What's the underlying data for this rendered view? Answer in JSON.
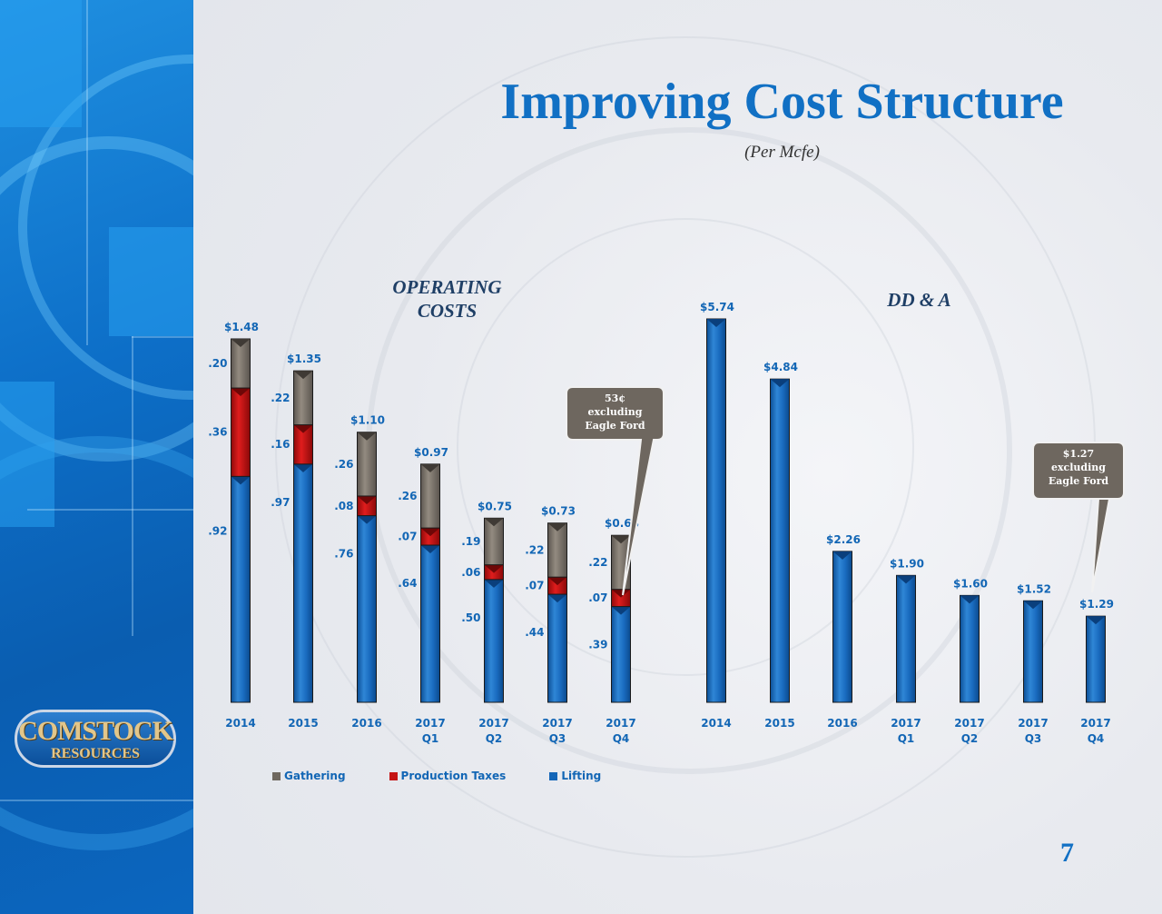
{
  "slide": {
    "title": "Improving Cost Structure",
    "subtitle": "(Per Mcfe)",
    "page_number": "7",
    "logo": {
      "line1": "COMSTOCK",
      "line2": "RESOURCES"
    }
  },
  "colors": {
    "gathering": "#7d766c",
    "production_taxes": "#c51414",
    "lifting": "#1466b8",
    "title": "#1170c4",
    "label": "#1266b5",
    "callout": "#6e675f"
  },
  "chart_data": [
    {
      "type": "bar",
      "title": "OPERATING COSTS",
      "stacked": true,
      "categories": [
        "2014",
        "2015",
        "2016",
        "2017 Q1",
        "2017 Q2",
        "2017 Q3",
        "2017 Q4"
      ],
      "category_lines": [
        [
          "2014",
          ""
        ],
        [
          "2015",
          ""
        ],
        [
          "2016",
          ""
        ],
        [
          "2017",
          "Q1"
        ],
        [
          "2017",
          "Q2"
        ],
        [
          "2017",
          "Q3"
        ],
        [
          "2017",
          "Q4"
        ]
      ],
      "series": [
        {
          "name": "Lifting",
          "values": [
            0.92,
            0.97,
            0.76,
            0.64,
            0.5,
            0.44,
            0.39
          ],
          "labels": [
            ".92",
            ".97",
            ".76",
            ".64",
            ".50",
            ".44",
            ".39"
          ]
        },
        {
          "name": "Production Taxes",
          "values": [
            0.36,
            0.16,
            0.08,
            0.07,
            0.06,
            0.07,
            0.07
          ],
          "labels": [
            ".36",
            ".16",
            ".08",
            ".07",
            ".06",
            ".07",
            ".07"
          ]
        },
        {
          "name": "Gathering",
          "values": [
            0.2,
            0.22,
            0.26,
            0.26,
            0.19,
            0.22,
            0.22
          ],
          "labels": [
            ".20",
            ".22",
            ".26",
            ".26",
            ".19",
            ".22",
            ".22"
          ]
        }
      ],
      "totals": [
        1.48,
        1.35,
        1.1,
        0.97,
        0.75,
        0.73,
        0.68
      ],
      "total_labels": [
        "$1.48",
        "$1.35",
        "$1.10",
        "$0.97",
        "$0.75",
        "$0.73",
        "$0.68"
      ],
      "callout": {
        "category": "2017 Q4",
        "lines": [
          "53¢",
          "excluding",
          "Eagle Ford"
        ]
      },
      "legend": [
        "Gathering",
        "Production Taxes",
        "Lifting"
      ],
      "legend_position": "bottom"
    },
    {
      "type": "bar",
      "title": "DD & A",
      "categories": [
        "2014",
        "2015",
        "2016",
        "2017 Q1",
        "2017 Q2",
        "2017 Q3",
        "2017 Q4"
      ],
      "category_lines": [
        [
          "2014",
          ""
        ],
        [
          "2015",
          ""
        ],
        [
          "2016",
          ""
        ],
        [
          "2017",
          "Q1"
        ],
        [
          "2017",
          "Q2"
        ],
        [
          "2017",
          "Q3"
        ],
        [
          "2017",
          "Q4"
        ]
      ],
      "values": [
        5.74,
        4.84,
        2.26,
        1.9,
        1.6,
        1.52,
        1.29
      ],
      "value_labels": [
        "$5.74",
        "$4.84",
        "$2.26",
        "$1.90",
        "$1.60",
        "$1.52",
        "$1.29"
      ],
      "callout": {
        "category": "2017 Q4",
        "lines": [
          "$1.27",
          "excluding",
          "Eagle Ford"
        ]
      }
    }
  ]
}
